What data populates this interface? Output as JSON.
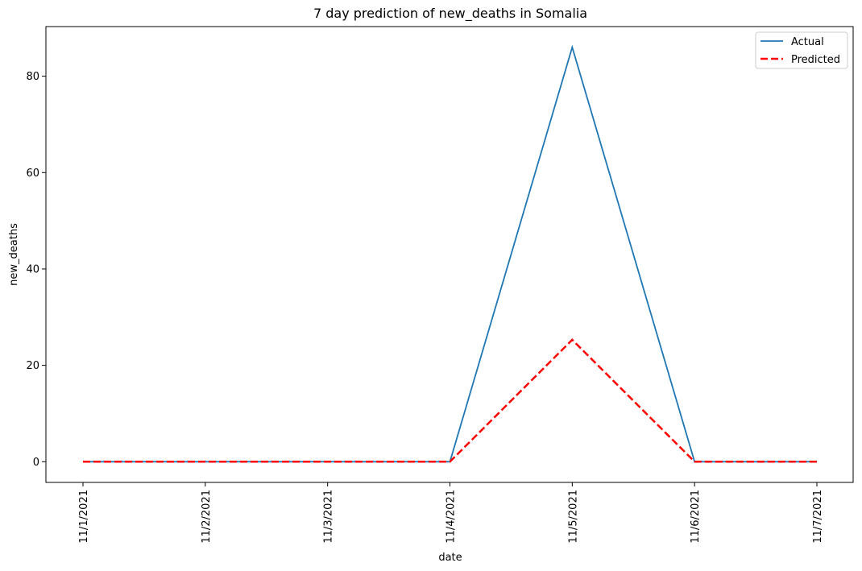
{
  "chart_data": {
    "type": "line",
    "title": "7 day prediction of new_deaths in Somalia",
    "xlabel": "date",
    "ylabel": "new_deaths",
    "categories": [
      "11/1/2021",
      "11/2/2021",
      "11/3/2021",
      "11/4/2021",
      "11/5/2021",
      "11/6/2021",
      "11/7/2021"
    ],
    "yticks": [
      0,
      20,
      40,
      60,
      80
    ],
    "ylim": [
      -4.3,
      90.3
    ],
    "grid": false,
    "legend_position": "top-right",
    "series": [
      {
        "name": "Actual",
        "values": [
          0,
          0,
          0,
          0,
          86,
          0,
          0
        ],
        "color": "#1f77b4",
        "style": "solid"
      },
      {
        "name": "Predicted",
        "values": [
          0,
          0,
          0,
          0,
          25.3,
          0,
          0
        ],
        "color": "#ff0000",
        "style": "dashed"
      }
    ]
  }
}
